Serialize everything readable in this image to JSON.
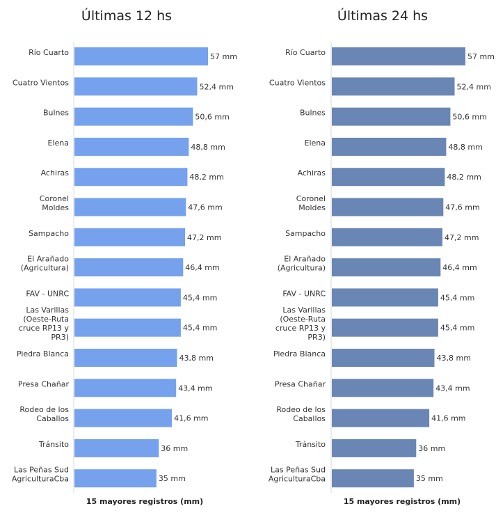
{
  "chart_data": [
    {
      "type": "bar",
      "orientation": "horizontal",
      "title": "Últimas 12 hs",
      "xlabel": "15 mayores registros (mm)",
      "ylabel": "",
      "color": "#76A1EC",
      "categories": [
        "Río Cuarto",
        "Cuatro Vientos",
        "Bulnes",
        "Elena",
        "Achiras",
        "Coronel Moldes",
        "Sampacho",
        "El Arañado (Agricultura)",
        "FAV - UNRC",
        "Las Varillas (Oeste-Ruta cruce RP13 y PR3)",
        "Piedra Blanca",
        "Presa Chañar",
        "Rodeo de los Caballos",
        "Tránsito",
        "Las Peñas Sud AgriculturaCba"
      ],
      "values": [
        57,
        52.4,
        50.6,
        48.8,
        48.2,
        47.6,
        47.2,
        46.4,
        45.4,
        45.4,
        43.8,
        43.4,
        41.6,
        36,
        35
      ],
      "value_labels": [
        "57 mm",
        "52,4 mm",
        "50,6 mm",
        "48,8 mm",
        "48,2 mm",
        "47,6 mm",
        "47,2 mm",
        "46,4 mm",
        "45,4 mm",
        "45,4 mm",
        "43,8 mm",
        "43,4 mm",
        "41,6 mm",
        "36 mm",
        "35 mm"
      ],
      "xlim": [
        0,
        60
      ],
      "grid": false
    },
    {
      "type": "bar",
      "orientation": "horizontal",
      "title": "Últimas 24 hs",
      "xlabel": "15 mayores registros (mm)",
      "ylabel": "",
      "color": "#6A86B4",
      "categories": [
        "Río Cuarto",
        "Cuatro Vientos",
        "Bulnes",
        "Elena",
        "Achiras",
        "Coronel Moldes",
        "Sampacho",
        "El Arañado (Agricultura)",
        "FAV - UNRC",
        "Las Varillas (Oeste-Ruta cruce RP13 y PR3)",
        "Piedra Blanca",
        "Presa Chañar",
        "Rodeo de los Caballos",
        "Tránsito",
        "Las Peñas Sud AgriculturaCba"
      ],
      "values": [
        57,
        52.4,
        50.6,
        48.8,
        48.2,
        47.6,
        47.2,
        46.4,
        45.4,
        45.4,
        43.8,
        43.4,
        41.6,
        36,
        35
      ],
      "value_labels": [
        "57 mm",
        "52,4 mm",
        "50,6 mm",
        "48,8 mm",
        "48,2 mm",
        "47,6 mm",
        "47,2 mm",
        "46,4 mm",
        "45,4 mm",
        "45,4 mm",
        "43,8 mm",
        "43,4 mm",
        "41,6 mm",
        "36 mm",
        "35 mm"
      ],
      "xlim": [
        0,
        60
      ],
      "grid": false
    }
  ]
}
